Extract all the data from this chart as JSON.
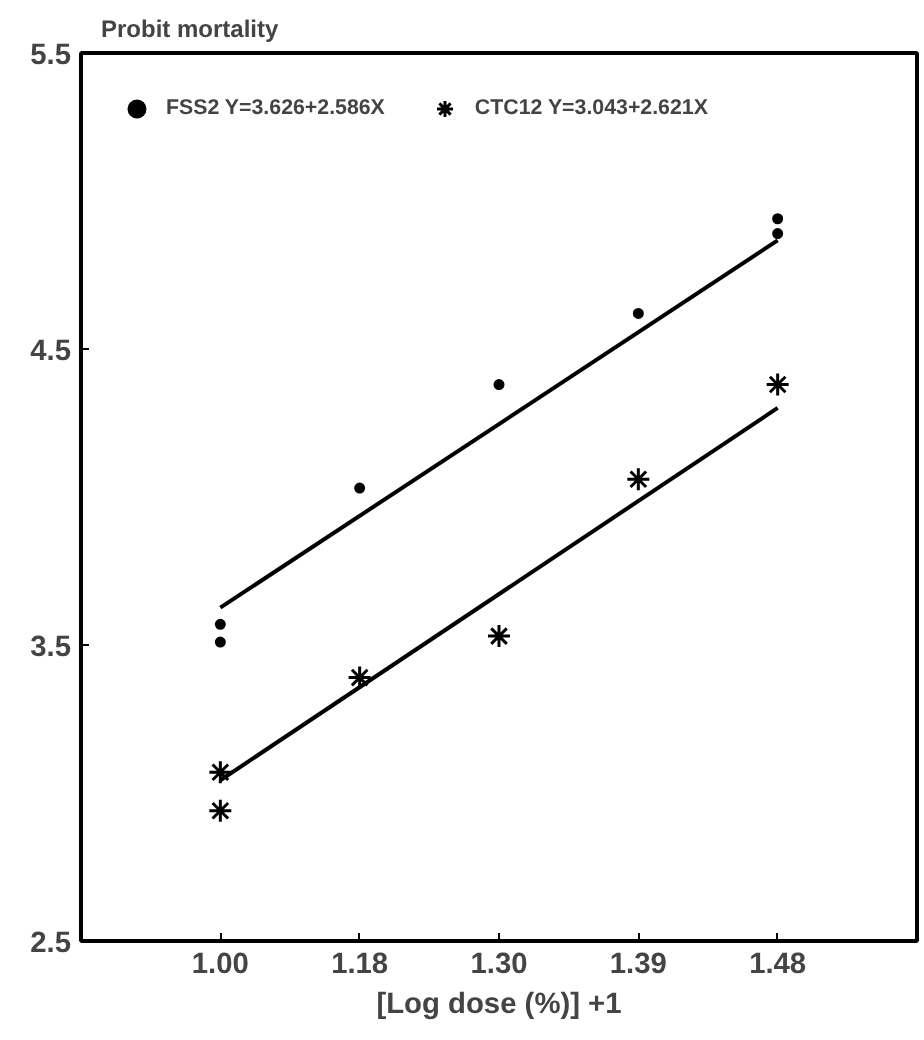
{
  "chart_data": {
    "type": "scatter",
    "ylabel": "Probit mortality",
    "xlabel": "[Log dose (%)] +1",
    "categories": [
      "1.00",
      "1.18",
      "1.30",
      "1.39",
      "1.48"
    ],
    "ylim": [
      2.5,
      5.5
    ],
    "yticks": [
      2.5,
      3.5,
      4.5,
      5.5
    ],
    "grid": false,
    "legend": "top left",
    "series": [
      {
        "name": "FSS2 Y=3.626+2.586X",
        "color": "#000000",
        "marker": "circle",
        "x": [
          "1.00",
          "1.00",
          "1.18",
          "1.30",
          "1.39",
          "1.48",
          "1.48"
        ],
        "values": [
          3.57,
          3.51,
          4.03,
          4.38,
          4.62,
          4.94,
          4.89
        ]
      },
      {
        "name": "CTC12 Y=3.043+2.621X",
        "color": "#000000",
        "marker": "cross",
        "x": [
          "1.00",
          "1.00",
          "1.18",
          "1.30",
          "1.39",
          "1.48"
        ],
        "values": [
          3.07,
          2.94,
          3.39,
          3.53,
          4.06,
          4.38
        ]
      },
      {
        "type": "line",
        "color": "#000000",
        "x": [
          "1.00",
          "1.48"
        ],
        "values": [
          3.626,
          4.867
        ]
      },
      {
        "type": "line",
        "color": "#000000",
        "x": [
          "1.00",
          "1.48"
        ],
        "values": [
          3.043,
          4.301
        ]
      }
    ]
  }
}
